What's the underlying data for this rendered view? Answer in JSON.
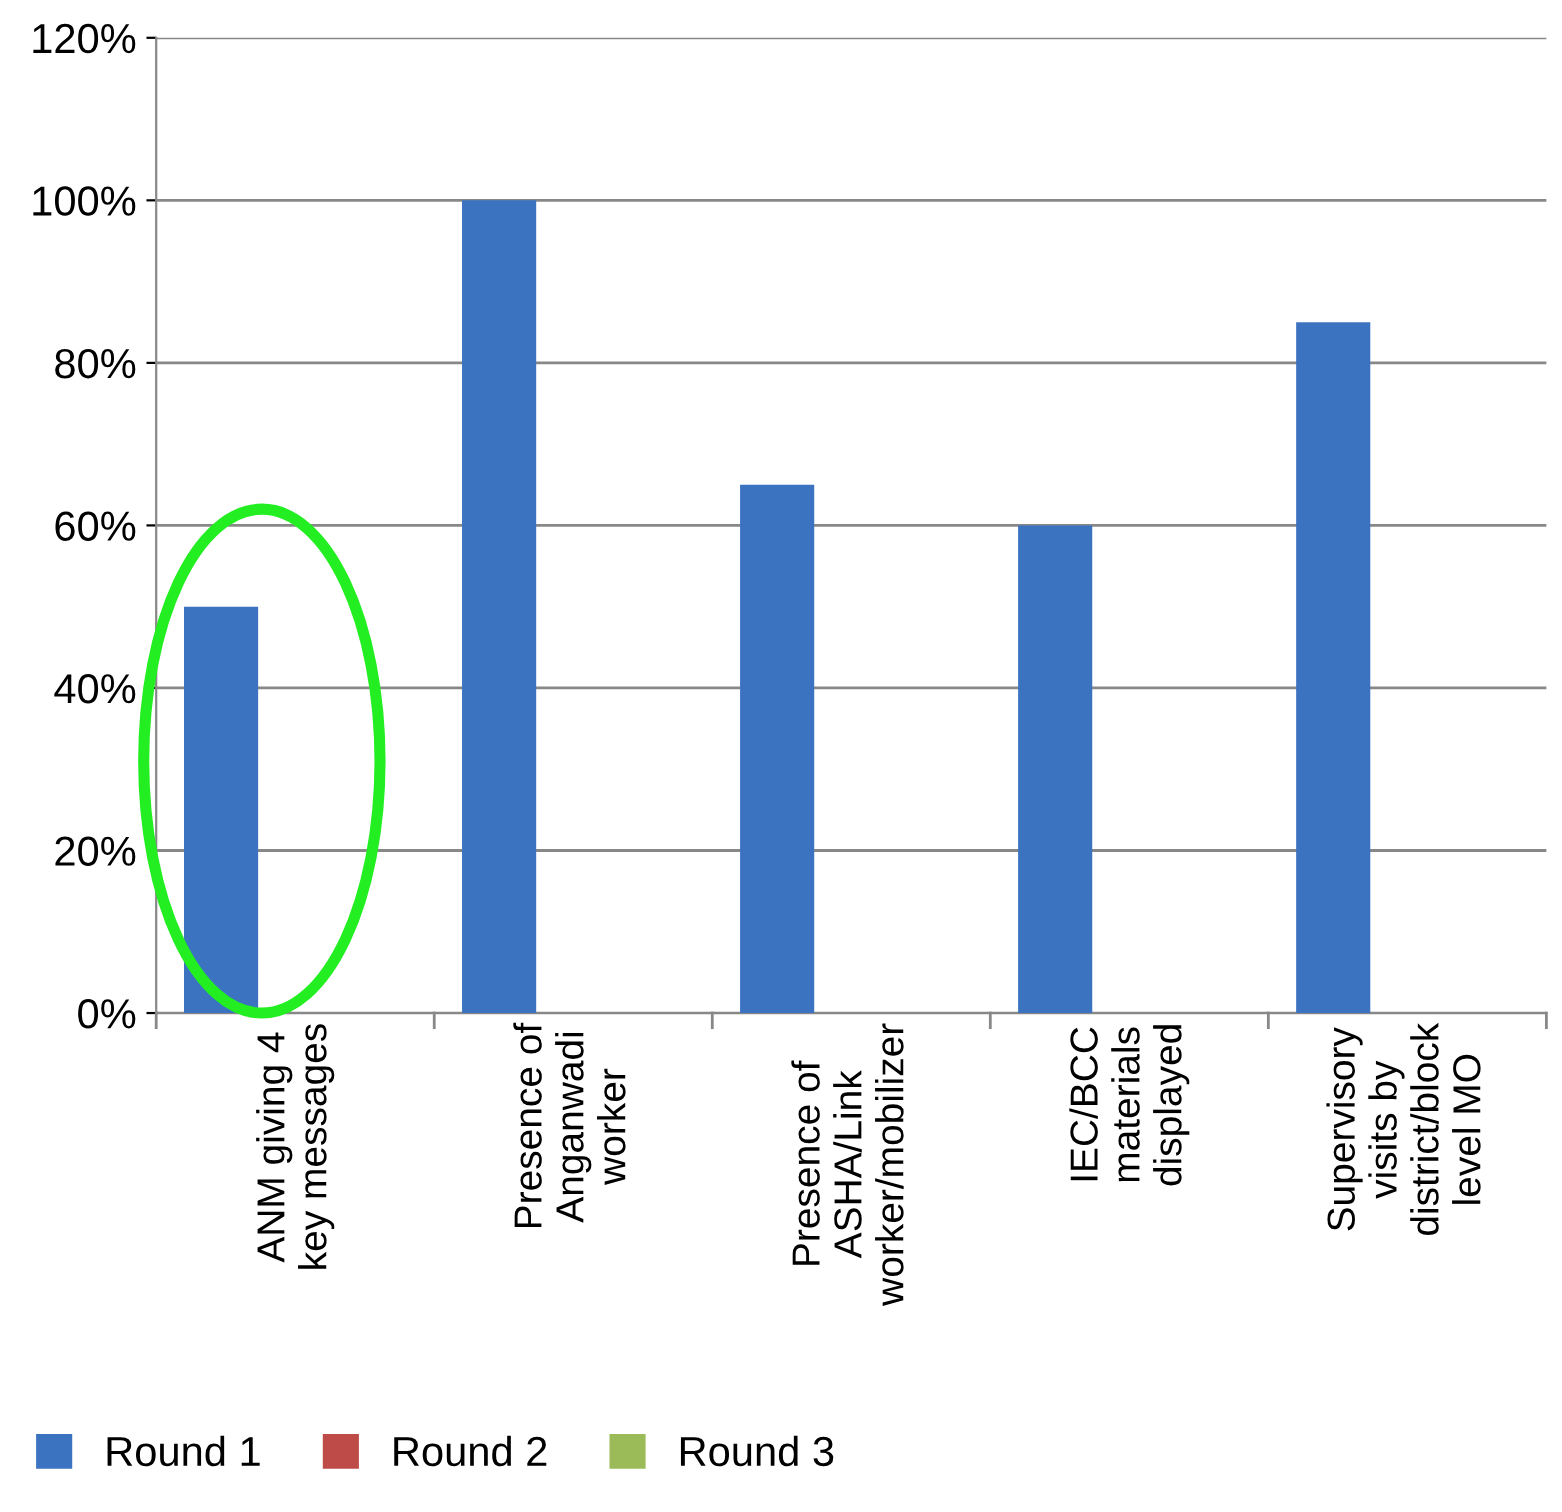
{
  "chart_data": {
    "type": "bar",
    "categories": [
      "ANM giving 4\nkey messages",
      "Presence of\nAnganwadi\nworker",
      "Presence of\nASHA/Link\nworker/mobilizer",
      "IEC/BCC\nmaterials\ndisplayed",
      "Supervisory\nvisits by\ndistrict/block\nlevel MO"
    ],
    "series": [
      {
        "name": "Round 1",
        "color": "#3b73c0",
        "values": [
          50,
          100,
          65,
          60,
          85
        ]
      },
      {
        "name": "Round 2",
        "color": "#be4b48",
        "values": [
          null,
          null,
          null,
          null,
          null
        ]
      },
      {
        "name": "Round 3",
        "color": "#9bbb59",
        "values": [
          null,
          null,
          null,
          null,
          null
        ]
      }
    ],
    "ylim": [
      0,
      120
    ],
    "yticks": [
      {
        "value": 0,
        "label": "0%"
      },
      {
        "value": 20,
        "label": "20%"
      },
      {
        "value": 40,
        "label": "40%"
      },
      {
        "value": 60,
        "label": "60%"
      },
      {
        "value": 80,
        "label": "80%"
      },
      {
        "value": 100,
        "label": "100%"
      },
      {
        "value": 120,
        "label": "120%"
      }
    ],
    "grid": "y",
    "legend": "bottom left"
  }
}
